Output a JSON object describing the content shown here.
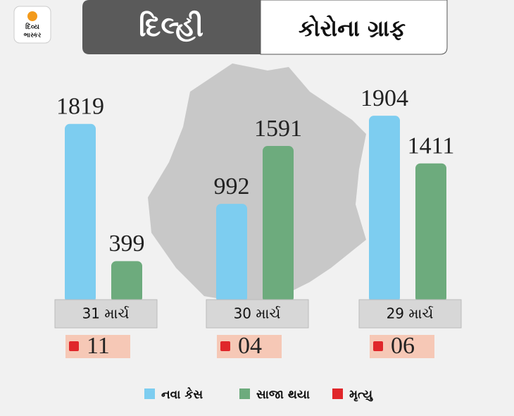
{
  "chart_data": {
    "type": "bar",
    "logo": [
      "દિવ્ય",
      "ભાસ્કર"
    ],
    "title": "દિલ્હી",
    "subtitle": "કોરોના ગ્રાફ",
    "categories": [
      "31 માર્ચ",
      "30 માર્ચ",
      "29 માર્ચ"
    ],
    "series": [
      {
        "name": "નવા કેસ",
        "color": "#7dcdf0",
        "values": [
          1819,
          992,
          1904
        ]
      },
      {
        "name": "સાજા થયા",
        "color": "#6dab7d",
        "values": [
          399,
          1591,
          1411
        ]
      }
    ],
    "deaths": {
      "name": "મૃત્યુ",
      "color": "#e0262a",
      "values": [
        11,
        4,
        6
      ],
      "value_labels": [
        "11",
        "04",
        "06"
      ]
    }
  }
}
